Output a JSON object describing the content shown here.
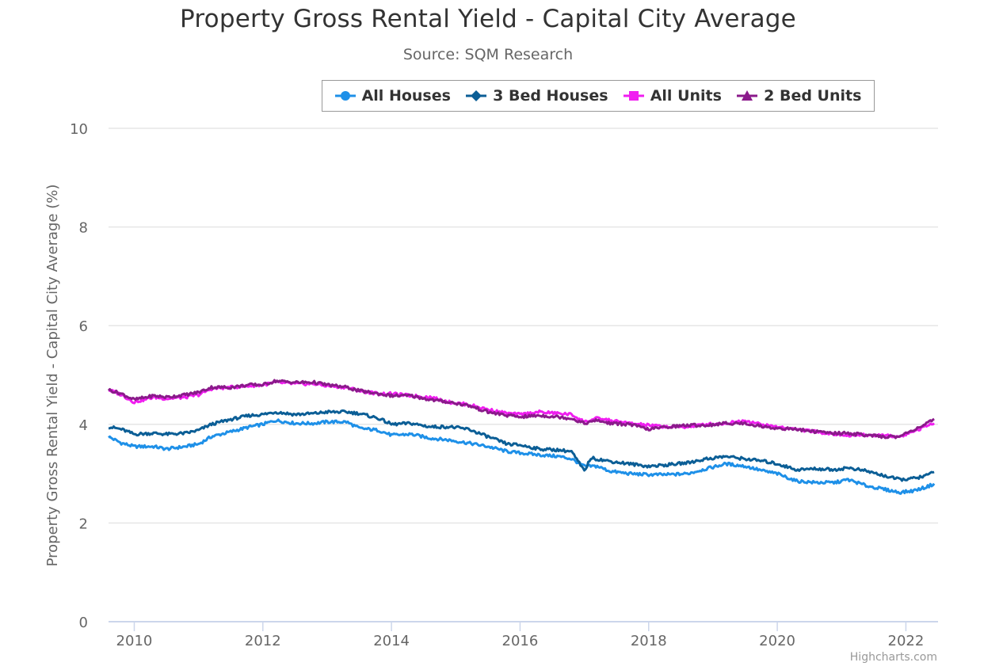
{
  "chart_data": {
    "type": "line",
    "title": "Property Gross Rental Yield - Capital City Average",
    "subtitle": "Source: SQM Research",
    "xlabel": "",
    "ylabel": "Property Gross Rental Yield - Capital City Average (%)",
    "xlim": [
      2009.6,
      2022.5
    ],
    "ylim": [
      0,
      10
    ],
    "xticks": [
      "2010",
      "2012",
      "2014",
      "2016",
      "2018",
      "2020",
      "2022"
    ],
    "yticks": [
      "0",
      "2",
      "4",
      "6",
      "8",
      "10"
    ],
    "grid": true,
    "legend_position": "top",
    "credit": "Highcharts.com",
    "series": [
      {
        "name": "All Houses",
        "color": "#1e90e8",
        "marker": "circle",
        "points": [
          [
            2009.6,
            3.75
          ],
          [
            2009.8,
            3.62
          ],
          [
            2010.0,
            3.55
          ],
          [
            2010.3,
            3.55
          ],
          [
            2010.5,
            3.5
          ],
          [
            2010.8,
            3.55
          ],
          [
            2011.0,
            3.6
          ],
          [
            2011.2,
            3.75
          ],
          [
            2011.5,
            3.85
          ],
          [
            2011.8,
            3.95
          ],
          [
            2012.0,
            4.0
          ],
          [
            2012.2,
            4.08
          ],
          [
            2012.5,
            4.02
          ],
          [
            2012.8,
            4.02
          ],
          [
            2013.0,
            4.05
          ],
          [
            2013.3,
            4.05
          ],
          [
            2013.5,
            3.92
          ],
          [
            2013.8,
            3.88
          ],
          [
            2014.0,
            3.78
          ],
          [
            2014.3,
            3.8
          ],
          [
            2014.6,
            3.72
          ],
          [
            2014.9,
            3.68
          ],
          [
            2015.2,
            3.62
          ],
          [
            2015.5,
            3.55
          ],
          [
            2015.8,
            3.45
          ],
          [
            2016.0,
            3.42
          ],
          [
            2016.3,
            3.38
          ],
          [
            2016.6,
            3.35
          ],
          [
            2016.8,
            3.3
          ],
          [
            2017.0,
            3.15
          ],
          [
            2017.2,
            3.15
          ],
          [
            2017.4,
            3.05
          ],
          [
            2017.7,
            3.0
          ],
          [
            2018.0,
            2.98
          ],
          [
            2018.3,
            2.98
          ],
          [
            2018.6,
            3.0
          ],
          [
            2018.9,
            3.1
          ],
          [
            2019.2,
            3.2
          ],
          [
            2019.5,
            3.15
          ],
          [
            2019.8,
            3.05
          ],
          [
            2020.0,
            3.0
          ],
          [
            2020.3,
            2.85
          ],
          [
            2020.6,
            2.82
          ],
          [
            2020.9,
            2.82
          ],
          [
            2021.1,
            2.88
          ],
          [
            2021.4,
            2.75
          ],
          [
            2021.6,
            2.7
          ],
          [
            2021.9,
            2.62
          ],
          [
            2022.1,
            2.65
          ],
          [
            2022.3,
            2.72
          ],
          [
            2022.45,
            2.8
          ]
        ]
      },
      {
        "name": "3 Bed Houses",
        "color": "#0b5e96",
        "marker": "diamond",
        "points": [
          [
            2009.6,
            3.95
          ],
          [
            2009.8,
            3.9
          ],
          [
            2010.0,
            3.8
          ],
          [
            2010.3,
            3.82
          ],
          [
            2010.5,
            3.8
          ],
          [
            2010.8,
            3.82
          ],
          [
            2011.0,
            3.88
          ],
          [
            2011.2,
            4.0
          ],
          [
            2011.5,
            4.1
          ],
          [
            2011.8,
            4.18
          ],
          [
            2012.0,
            4.2
          ],
          [
            2012.2,
            4.25
          ],
          [
            2012.5,
            4.2
          ],
          [
            2012.8,
            4.22
          ],
          [
            2013.0,
            4.25
          ],
          [
            2013.3,
            4.25
          ],
          [
            2013.5,
            4.22
          ],
          [
            2013.8,
            4.12
          ],
          [
            2014.0,
            4.0
          ],
          [
            2014.3,
            4.02
          ],
          [
            2014.6,
            3.95
          ],
          [
            2014.9,
            3.95
          ],
          [
            2015.2,
            3.9
          ],
          [
            2015.5,
            3.75
          ],
          [
            2015.8,
            3.6
          ],
          [
            2016.0,
            3.58
          ],
          [
            2016.3,
            3.5
          ],
          [
            2016.6,
            3.48
          ],
          [
            2016.8,
            3.45
          ],
          [
            2017.0,
            3.05
          ],
          [
            2017.1,
            3.32
          ],
          [
            2017.4,
            3.25
          ],
          [
            2017.7,
            3.2
          ],
          [
            2018.0,
            3.15
          ],
          [
            2018.3,
            3.18
          ],
          [
            2018.6,
            3.22
          ],
          [
            2018.9,
            3.3
          ],
          [
            2019.2,
            3.35
          ],
          [
            2019.5,
            3.3
          ],
          [
            2019.8,
            3.25
          ],
          [
            2020.0,
            3.2
          ],
          [
            2020.3,
            3.08
          ],
          [
            2020.6,
            3.1
          ],
          [
            2020.9,
            3.08
          ],
          [
            2021.1,
            3.12
          ],
          [
            2021.4,
            3.05
          ],
          [
            2021.6,
            2.98
          ],
          [
            2021.9,
            2.88
          ],
          [
            2022.1,
            2.9
          ],
          [
            2022.3,
            2.95
          ],
          [
            2022.45,
            3.05
          ]
        ]
      },
      {
        "name": "All Units",
        "color": "#f01ef0",
        "marker": "square",
        "points": [
          [
            2009.6,
            4.7
          ],
          [
            2009.8,
            4.6
          ],
          [
            2010.0,
            4.45
          ],
          [
            2010.3,
            4.55
          ],
          [
            2010.5,
            4.52
          ],
          [
            2010.8,
            4.55
          ],
          [
            2011.0,
            4.6
          ],
          [
            2011.2,
            4.72
          ],
          [
            2011.5,
            4.75
          ],
          [
            2011.8,
            4.78
          ],
          [
            2012.0,
            4.8
          ],
          [
            2012.2,
            4.85
          ],
          [
            2012.5,
            4.82
          ],
          [
            2012.8,
            4.82
          ],
          [
            2013.0,
            4.78
          ],
          [
            2013.3,
            4.75
          ],
          [
            2013.5,
            4.68
          ],
          [
            2013.8,
            4.62
          ],
          [
            2014.0,
            4.62
          ],
          [
            2014.3,
            4.58
          ],
          [
            2014.6,
            4.55
          ],
          [
            2014.9,
            4.45
          ],
          [
            2015.2,
            4.4
          ],
          [
            2015.5,
            4.3
          ],
          [
            2015.8,
            4.22
          ],
          [
            2016.0,
            4.2
          ],
          [
            2016.3,
            4.25
          ],
          [
            2016.6,
            4.22
          ],
          [
            2016.8,
            4.2
          ],
          [
            2017.0,
            4.05
          ],
          [
            2017.2,
            4.12
          ],
          [
            2017.4,
            4.08
          ],
          [
            2017.7,
            4.02
          ],
          [
            2018.0,
            3.98
          ],
          [
            2018.3,
            3.95
          ],
          [
            2018.6,
            3.95
          ],
          [
            2018.9,
            4.0
          ],
          [
            2019.2,
            4.02
          ],
          [
            2019.5,
            4.08
          ],
          [
            2019.8,
            3.98
          ],
          [
            2020.0,
            3.95
          ],
          [
            2020.3,
            3.9
          ],
          [
            2020.6,
            3.85
          ],
          [
            2020.9,
            3.8
          ],
          [
            2021.1,
            3.78
          ],
          [
            2021.4,
            3.78
          ],
          [
            2021.6,
            3.78
          ],
          [
            2021.9,
            3.75
          ],
          [
            2022.1,
            3.85
          ],
          [
            2022.3,
            3.95
          ],
          [
            2022.45,
            4.05
          ]
        ]
      },
      {
        "name": "2 Bed Units",
        "color": "#8b1a8b",
        "marker": "triangle",
        "points": [
          [
            2009.6,
            4.7
          ],
          [
            2009.8,
            4.62
          ],
          [
            2010.0,
            4.5
          ],
          [
            2010.3,
            4.58
          ],
          [
            2010.5,
            4.55
          ],
          [
            2010.8,
            4.6
          ],
          [
            2011.0,
            4.65
          ],
          [
            2011.2,
            4.75
          ],
          [
            2011.5,
            4.75
          ],
          [
            2011.8,
            4.8
          ],
          [
            2012.0,
            4.8
          ],
          [
            2012.2,
            4.88
          ],
          [
            2012.5,
            4.85
          ],
          [
            2012.8,
            4.85
          ],
          [
            2013.0,
            4.8
          ],
          [
            2013.3,
            4.75
          ],
          [
            2013.5,
            4.68
          ],
          [
            2013.8,
            4.62
          ],
          [
            2014.0,
            4.58
          ],
          [
            2014.3,
            4.58
          ],
          [
            2014.6,
            4.5
          ],
          [
            2014.9,
            4.45
          ],
          [
            2015.2,
            4.38
          ],
          [
            2015.5,
            4.25
          ],
          [
            2015.8,
            4.18
          ],
          [
            2016.0,
            4.15
          ],
          [
            2016.3,
            4.18
          ],
          [
            2016.6,
            4.15
          ],
          [
            2016.8,
            4.12
          ],
          [
            2017.0,
            4.02
          ],
          [
            2017.2,
            4.08
          ],
          [
            2017.4,
            4.02
          ],
          [
            2017.7,
            4.0
          ],
          [
            2018.0,
            3.9
          ],
          [
            2018.3,
            3.95
          ],
          [
            2018.6,
            3.98
          ],
          [
            2018.9,
            3.98
          ],
          [
            2019.2,
            4.02
          ],
          [
            2019.5,
            4.02
          ],
          [
            2019.8,
            3.95
          ],
          [
            2020.0,
            3.92
          ],
          [
            2020.3,
            3.9
          ],
          [
            2020.6,
            3.85
          ],
          [
            2020.9,
            3.82
          ],
          [
            2021.1,
            3.82
          ],
          [
            2021.4,
            3.78
          ],
          [
            2021.6,
            3.75
          ],
          [
            2021.9,
            3.75
          ],
          [
            2022.1,
            3.88
          ],
          [
            2022.3,
            4.0
          ],
          [
            2022.45,
            4.1
          ]
        ]
      }
    ]
  }
}
